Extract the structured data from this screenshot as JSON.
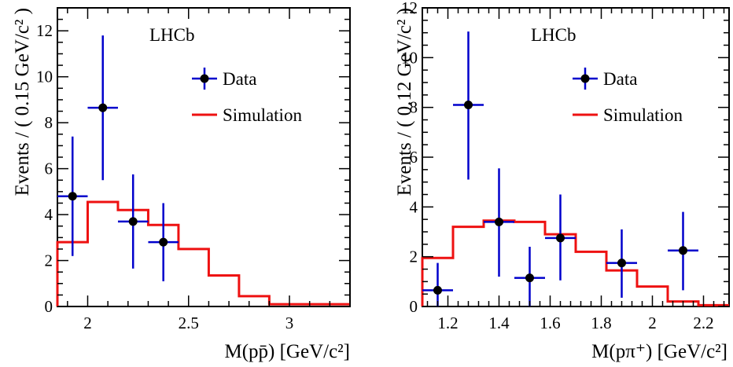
{
  "chart_data": [
    {
      "type": "histogram",
      "xlabel": "M(pp̄) [GeV/c²]",
      "ylabel": "Events / ( 0.15 GeV/c² )",
      "experiment_label": "LHCb",
      "xlim": [
        1.85,
        3.3
      ],
      "ylim": [
        0,
        13
      ],
      "xticks": [
        2,
        2.5,
        3
      ],
      "xtick_labels": [
        "2",
        "2.5",
        "3"
      ],
      "yticks": [
        0,
        2,
        4,
        6,
        8,
        10,
        12
      ],
      "ytick_labels": [
        "0",
        "2",
        "4",
        "6",
        "8",
        "10",
        "12"
      ],
      "legend": {
        "placement": "top-right",
        "data_label": "Data",
        "sim_label": "Simulation"
      },
      "colors": {
        "data": "#0000cc",
        "marker": "#000000",
        "simulation": "#ee1111"
      },
      "series": [
        {
          "name": "Data",
          "x": [
            1.925,
            2.075,
            2.225,
            2.375
          ],
          "y": [
            4.8,
            8.65,
            3.7,
            2.8
          ],
          "xerr": 0.075,
          "yerr_low": [
            2.6,
            3.15,
            2.05,
            1.7
          ],
          "yerr_high": [
            2.6,
            3.15,
            2.05,
            1.7
          ]
        },
        {
          "name": "Simulation",
          "bin_edges": [
            1.85,
            2.0,
            2.15,
            2.3,
            2.45,
            2.6,
            2.75,
            2.9,
            3.05,
            3.2,
            3.3
          ],
          "values": [
            2.8,
            4.55,
            4.2,
            3.55,
            2.5,
            1.35,
            0.45,
            0.1,
            0.1,
            0.1
          ]
        }
      ]
    },
    {
      "type": "histogram",
      "xlabel": "M(pπ⁺) [GeV/c²]",
      "ylabel": "Events / ( 0.12 GeV/c² )",
      "experiment_label": "LHCb",
      "xlim": [
        1.1,
        2.3
      ],
      "ylim": [
        0,
        12
      ],
      "xticks": [
        1.2,
        1.4,
        1.6,
        1.8,
        2.0,
        2.2
      ],
      "xtick_labels": [
        "1.2",
        "1.4",
        "1.6",
        "1.8",
        "2",
        "2.2"
      ],
      "yticks": [
        0,
        2,
        4,
        6,
        8,
        10,
        12
      ],
      "ytick_labels": [
        "0",
        "2",
        "4",
        "6",
        "8",
        "10",
        "12"
      ],
      "legend": {
        "placement": "top-right",
        "data_label": "Data",
        "sim_label": "Simulation"
      },
      "colors": {
        "data": "#0000cc",
        "marker": "#000000",
        "simulation": "#ee1111"
      },
      "series": [
        {
          "name": "Data",
          "x": [
            1.16,
            1.28,
            1.4,
            1.52,
            1.64,
            1.88,
            2.12
          ],
          "y": [
            0.65,
            8.1,
            3.4,
            1.15,
            2.75,
            1.75,
            2.25
          ],
          "xerr": 0.06,
          "yerr_low": [
            0.65,
            3.0,
            2.2,
            1.15,
            1.7,
            1.4,
            1.6
          ],
          "yerr_high": [
            1.1,
            2.95,
            2.15,
            1.25,
            1.75,
            1.35,
            1.55
          ]
        },
        {
          "name": "Simulation",
          "bin_edges": [
            1.1,
            1.22,
            1.34,
            1.46,
            1.58,
            1.7,
            1.82,
            1.94,
            2.06,
            2.18,
            2.3
          ],
          "values": [
            1.95,
            3.2,
            3.45,
            3.4,
            2.9,
            2.2,
            1.45,
            0.8,
            0.2,
            0.05
          ]
        }
      ]
    }
  ]
}
